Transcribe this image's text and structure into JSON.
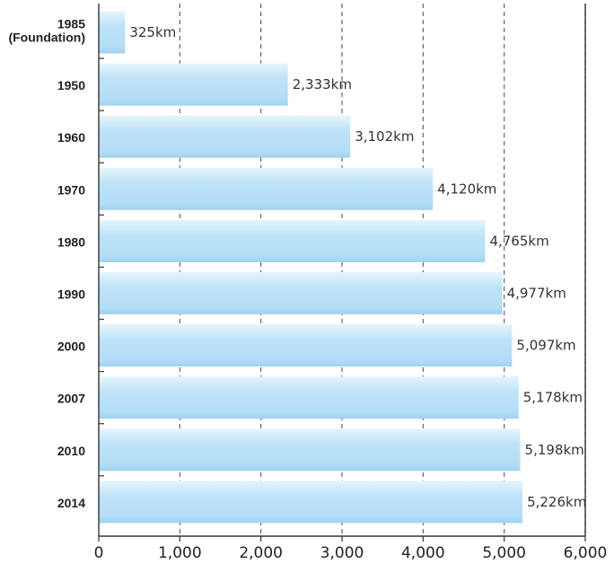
{
  "chart_data": {
    "type": "bar",
    "orientation": "horizontal",
    "categories": [
      [
        "1985",
        "(Foundation)"
      ],
      [
        "1950"
      ],
      [
        "1960"
      ],
      [
        "1970"
      ],
      [
        "1980"
      ],
      [
        "1990"
      ],
      [
        "2000"
      ],
      [
        "2007"
      ],
      [
        "2010"
      ],
      [
        "2014"
      ]
    ],
    "values": [
      325,
      2333,
      3102,
      4120,
      4765,
      4977,
      5097,
      5178,
      5198,
      5226
    ],
    "value_labels": [
      "325km",
      "2,333km",
      "3,102km",
      "4,120km",
      "4,765km",
      "4,977km",
      "5,097km",
      "5,178km",
      "5,198km",
      "5,226km"
    ],
    "xticks": [
      0,
      1000,
      2000,
      3000,
      4000,
      5000,
      6000
    ],
    "xtick_labels": [
      "0",
      "1,000",
      "2,000",
      "3,000",
      "4,000",
      "5,000",
      "6,000"
    ],
    "xlim": [
      0,
      6000
    ],
    "grid": "vertical-dashed",
    "colors": {
      "bar_light": "#dff1fc",
      "bar_main": "#b8e0f7",
      "axis": "#333333",
      "grid": "#666666"
    }
  }
}
